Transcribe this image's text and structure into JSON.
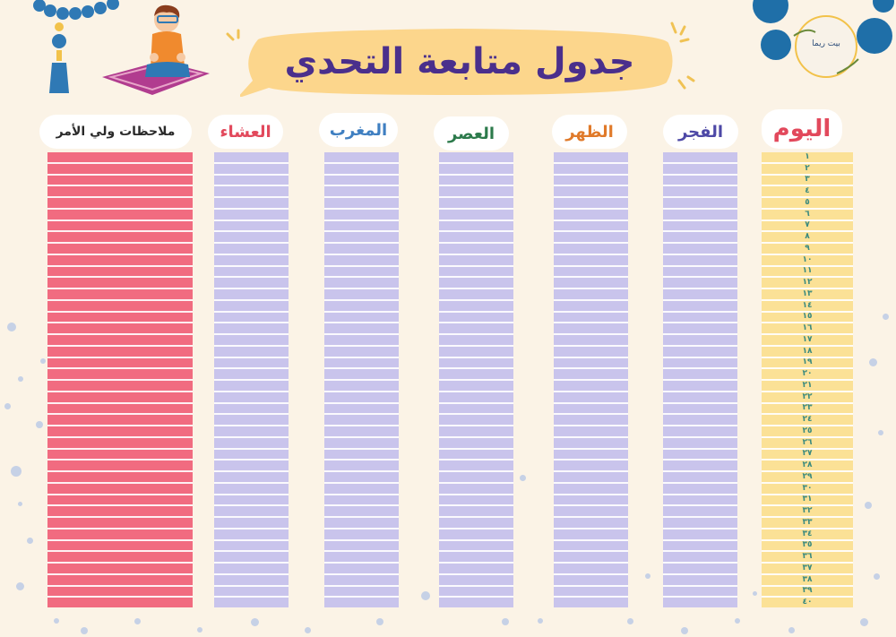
{
  "title": "جدول متابعة التحدي",
  "logo": {
    "text": "بيت ريما"
  },
  "colors": {
    "background": "#fbf3e6",
    "title_bubble": "#fcd68c",
    "title_text": "#4a2f8c",
    "prayer_column": "#c9c4ec",
    "notes_column": "#f16b80",
    "day_column": "#fbe196"
  },
  "columns": [
    {
      "id": "notes",
      "label": "ملاحظات ولي الأمر",
      "color": "#2a2a2a"
    },
    {
      "id": "isha",
      "label": "العشاء",
      "color": "#e2495c"
    },
    {
      "id": "maghrib",
      "label": "المغرب",
      "color": "#3f7fc1"
    },
    {
      "id": "asr",
      "label": "العصر",
      "color": "#2c7a4b"
    },
    {
      "id": "dhuhr",
      "label": "الظهر",
      "color": "#e07a2a"
    },
    {
      "id": "fajr",
      "label": "الفجر",
      "color": "#4d48a6"
    },
    {
      "id": "day",
      "label": "اليوم",
      "color": "#e2495c"
    }
  ],
  "days": [
    "١",
    "٢",
    "٣",
    "٤",
    "٥",
    "٦",
    "٧",
    "٨",
    "٩",
    "١٠",
    "١١",
    "١٢",
    "١٣",
    "١٤",
    "١٥",
    "١٦",
    "١٧",
    "١٨",
    "١٩",
    "٢٠",
    "٢١",
    "٢٢",
    "٢٣",
    "٢٤",
    "٢٥",
    "٢٦",
    "٢٧",
    "٢٨",
    "٢٩",
    "٣٠",
    "٣١",
    "٣٢",
    "٣٣",
    "٣٤",
    "٣٥",
    "٣٦",
    "٣٧",
    "٣٨",
    "٣٩",
    "٤٠"
  ]
}
